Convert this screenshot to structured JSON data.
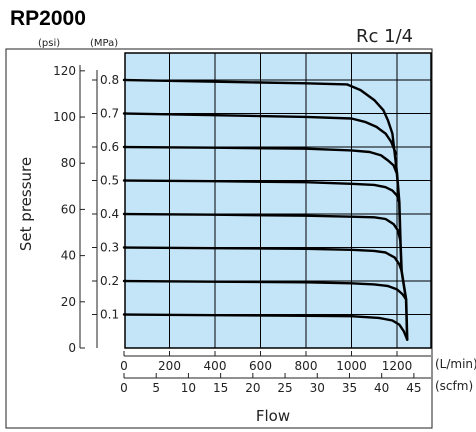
{
  "chart_data": {
    "type": "line",
    "title": "RP2000",
    "subtitle": "Rc 1/4",
    "xlabel": "Flow",
    "ylabel": "Set pressure",
    "x_unit": "(L/min)",
    "x2_unit": "(scfm)",
    "y_unit_psi": "(psi)",
    "y_unit_mpa": "(MPa)",
    "xlim": [
      0,
      1350
    ],
    "x_ticks": [
      0,
      200,
      400,
      600,
      800,
      1000,
      1200
    ],
    "x2_ticks": [
      0,
      5,
      10,
      15,
      20,
      25,
      30,
      35,
      40,
      45
    ],
    "ylim_mpa": [
      0,
      0.86
    ],
    "y_ticks_mpa": [
      "0.1",
      "0.2",
      "0.3",
      "0.4",
      "0.5",
      "0.6",
      "0.7",
      "0.8"
    ],
    "y_ticks_psi": [
      0,
      20,
      40,
      60,
      80,
      100,
      120
    ],
    "grid": true,
    "background_color": "#c4e4f7",
    "line_color": "#000000",
    "series": [
      {
        "set_pressure_mpa": 0.8,
        "x": [
          0,
          400,
          800,
          980,
          1040,
          1100,
          1140,
          1160,
          1180,
          1195
        ],
        "y": [
          0.8,
          0.795,
          0.79,
          0.787,
          0.77,
          0.74,
          0.71,
          0.68,
          0.64,
          0.55
        ]
      },
      {
        "set_pressure_mpa": 0.7,
        "x": [
          0,
          400,
          800,
          1000,
          1060,
          1110,
          1150,
          1175,
          1195
        ],
        "y": [
          0.7,
          0.695,
          0.69,
          0.685,
          0.675,
          0.66,
          0.64,
          0.615,
          0.58
        ]
      },
      {
        "set_pressure_mpa": 0.6,
        "x": [
          0,
          400,
          800,
          1000,
          1080,
          1130,
          1160,
          1185,
          1200
        ],
        "y": [
          0.6,
          0.598,
          0.595,
          0.59,
          0.585,
          0.575,
          0.56,
          0.545,
          0.52
        ]
      },
      {
        "set_pressure_mpa": 0.5,
        "x": [
          0,
          400,
          800,
          1000,
          1100,
          1150,
          1180,
          1200,
          1210
        ],
        "y": [
          0.5,
          0.498,
          0.495,
          0.49,
          0.487,
          0.48,
          0.47,
          0.455,
          0.435
        ]
      },
      {
        "set_pressure_mpa": 0.4,
        "x": [
          0,
          400,
          800,
          1000,
          1100,
          1150,
          1185,
          1205,
          1215
        ],
        "y": [
          0.4,
          0.398,
          0.395,
          0.392,
          0.39,
          0.385,
          0.37,
          0.35,
          0.32
        ]
      },
      {
        "set_pressure_mpa": 0.3,
        "x": [
          0,
          400,
          800,
          1000,
          1100,
          1150,
          1190,
          1210,
          1220
        ],
        "y": [
          0.3,
          0.298,
          0.296,
          0.293,
          0.29,
          0.285,
          0.27,
          0.25,
          0.23
        ]
      },
      {
        "set_pressure_mpa": 0.2,
        "x": [
          0,
          400,
          800,
          1000,
          1100,
          1160,
          1200,
          1225,
          1240
        ],
        "y": [
          0.2,
          0.198,
          0.196,
          0.193,
          0.19,
          0.185,
          0.175,
          0.16,
          0.145
        ]
      },
      {
        "set_pressure_mpa": 0.1,
        "x": [
          0,
          400,
          800,
          1000,
          1120,
          1180,
          1210,
          1230,
          1245
        ],
        "y": [
          0.1,
          0.098,
          0.096,
          0.095,
          0.09,
          0.082,
          0.07,
          0.05,
          0.025
        ]
      },
      {
        "envelope": true,
        "x": [
          1195,
          1200,
          1210,
          1215,
          1220,
          1240,
          1245
        ],
        "y": [
          0.55,
          0.52,
          0.435,
          0.32,
          0.23,
          0.145,
          0.025
        ]
      }
    ]
  }
}
